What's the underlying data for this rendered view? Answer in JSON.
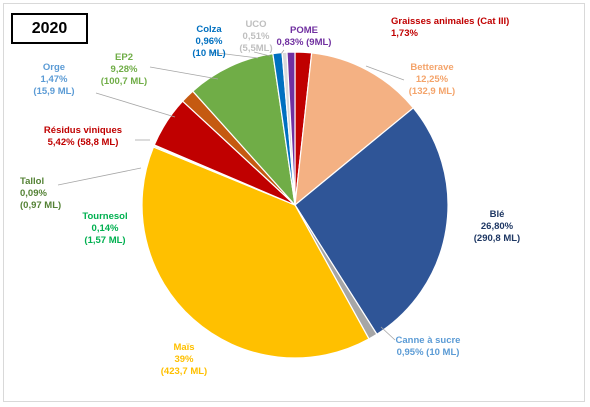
{
  "title": "2020",
  "chart_data": {
    "type": "pie",
    "title": "2020",
    "slices": [
      {
        "name": "Graisses animales (Cat III)",
        "value": 1.73,
        "pct_label": "1,73%",
        "vol_label": "",
        "color": "#c00000",
        "label_color": "#c00000"
      },
      {
        "name": "Betterave",
        "value": 12.25,
        "pct_label": "12,25%",
        "vol_label": "(132,9 ML)",
        "color": "#f4b183",
        "label_color": "#f4a46b"
      },
      {
        "name": "Blé",
        "value": 26.8,
        "pct_label": "26,80%",
        "vol_label": "(290,8 ML)",
        "color": "#2f5597",
        "label_color": "#1f3864"
      },
      {
        "name": "Canne à sucre",
        "value": 0.95,
        "pct_label": "0,95% (10 ML)",
        "vol_label": "",
        "color": "#a6a6a6",
        "label_color": "#5b9bd5"
      },
      {
        "name": "Maïs",
        "value": 39,
        "pct_label": "39%",
        "vol_label": "(423,7 ML)",
        "color": "#ffc000",
        "label_color": "#ffc000"
      },
      {
        "name": "Tournesol",
        "value": 0.14,
        "pct_label": "0,14%",
        "vol_label": "(1,57 ML)",
        "color": "#00b050",
        "label_color": "#00b050"
      },
      {
        "name": "Tallol",
        "value": 0.09,
        "pct_label": "0,09%",
        "vol_label": "(0,97 ML)",
        "color": "#70ad47",
        "label_color": "#548235"
      },
      {
        "name": "Résidus viniques",
        "value": 5.42,
        "pct_label": "5,42% (58,8 ML)",
        "vol_label": "",
        "color": "#c00000",
        "label_color": "#c00000"
      },
      {
        "name": "Orge",
        "value": 1.47,
        "pct_label": "1,47%",
        "vol_label": "(15,9 ML)",
        "color": "#c55a11",
        "label_color": "#5b9bd5"
      },
      {
        "name": "EP2",
        "value": 9.28,
        "pct_label": "9,28%",
        "vol_label": "(100,7 ML)",
        "color": "#70ad47",
        "label_color": "#70ad47"
      },
      {
        "name": "Colza",
        "value": 0.96,
        "pct_label": "0,96%",
        "vol_label": "(10 ML)",
        "color": "#0070c0",
        "label_color": "#0070c0"
      },
      {
        "name": "UCO",
        "value": 0.51,
        "pct_label": "0,51%",
        "vol_label": "(5,5ML)",
        "color": "#d9d9d9",
        "label_color": "#bfbfbf"
      },
      {
        "name": "POME",
        "value": 0.83,
        "pct_label": "0,83% (9ML)",
        "vol_label": "",
        "color": "#7030a0",
        "label_color": "#7030a0"
      }
    ]
  }
}
